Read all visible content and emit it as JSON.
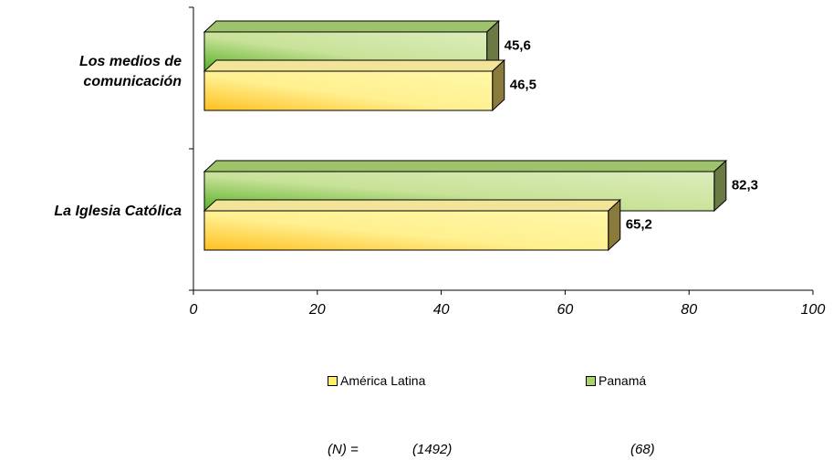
{
  "chart_data": {
    "type": "bar",
    "orientation": "horizontal",
    "categories": [
      "Los medios de comunicación",
      "La Iglesia Católica"
    ],
    "category_lines": [
      [
        "Los medios de",
        "comunicación"
      ],
      [
        "La Iglesia Católica"
      ]
    ],
    "series": [
      {
        "name": "América Latina",
        "values": [
          46.5,
          65.2
        ],
        "value_labels": [
          "46,5",
          "65,2"
        ],
        "color_light": "#fff6a0",
        "color_dark": "#ffcc33"
      },
      {
        "name": "Panamá",
        "values": [
          45.6,
          82.3
        ],
        "value_labels": [
          "45,6",
          "82,3"
        ],
        "color_light": "#d8ebb0",
        "color_dark": "#66bb33"
      }
    ],
    "xlim": [
      0,
      100
    ],
    "xticks": [
      "0",
      "20",
      "40",
      "60",
      "80",
      "100"
    ],
    "grid": false,
    "legend": "bottom"
  },
  "legend_items": [
    {
      "label": "América Latina",
      "color": "#ffee66"
    },
    {
      "label": "Panamá",
      "color": "#aad468"
    }
  ],
  "sample_sizes": {
    "label": "(N) =",
    "america_latina": "(1492)",
    "panama": "(68)"
  }
}
